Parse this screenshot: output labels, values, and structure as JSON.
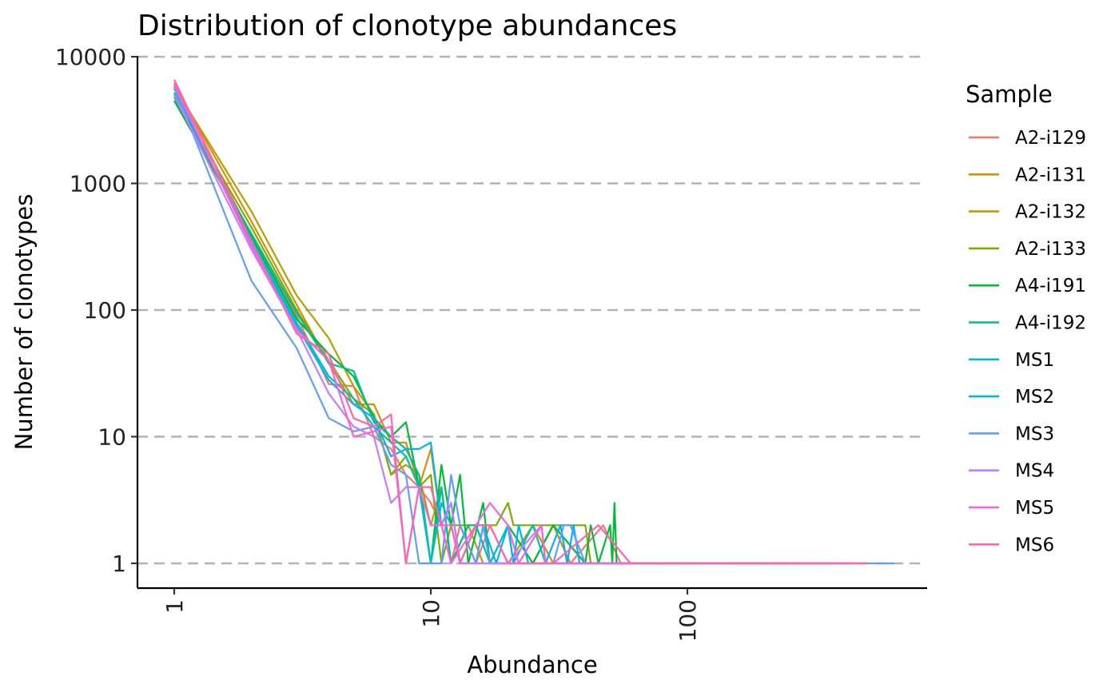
{
  "chart_data": {
    "type": "line",
    "title": "Distribution of clonotype abundances",
    "xlabel": "Abundance",
    "ylabel": "Number of clonotypes",
    "x_scale": "log10",
    "y_scale": "log10",
    "xlim": [
      0.87,
      825
    ],
    "ylim": [
      0.65,
      10000
    ],
    "x_ticks": [
      "1",
      "10",
      "100"
    ],
    "y_ticks": [
      "1",
      "10",
      "100",
      "1000",
      "10000"
    ],
    "grid": "horizontal major, dashed",
    "legend": {
      "title": "Sample",
      "position": "right"
    },
    "series": [
      {
        "name": "A2-i129",
        "color": "#F8766D",
        "points": [
          [
            1,
            6200
          ],
          [
            2,
            380
          ],
          [
            3,
            90
          ],
          [
            4,
            26
          ],
          [
            5,
            25
          ],
          [
            6,
            10
          ],
          [
            7,
            8
          ],
          [
            8,
            5
          ],
          [
            9,
            4
          ],
          [
            10,
            3
          ],
          [
            11,
            2
          ],
          [
            12,
            1
          ],
          [
            13,
            2
          ],
          [
            15,
            1
          ],
          [
            17,
            2
          ],
          [
            20,
            1
          ],
          [
            25,
            1
          ],
          [
            30,
            2
          ],
          [
            35,
            1
          ],
          [
            47,
            2
          ],
          [
            55,
            1
          ],
          [
            100,
            1
          ],
          [
            250,
            1
          ],
          [
            450,
            1
          ]
        ]
      },
      {
        "name": "A2-i131",
        "color": "#DE8C00",
        "points": [
          [
            1,
            6000
          ],
          [
            2,
            500
          ],
          [
            3,
            110
          ],
          [
            4,
            38
          ],
          [
            5,
            18
          ],
          [
            6,
            18
          ],
          [
            7,
            9
          ],
          [
            8,
            9
          ],
          [
            9,
            4
          ],
          [
            10,
            8
          ],
          [
            11,
            2
          ],
          [
            12,
            3
          ],
          [
            13,
            1
          ],
          [
            15,
            2
          ],
          [
            17,
            1
          ],
          [
            20,
            1
          ],
          [
            25,
            1
          ],
          [
            30,
            2
          ],
          [
            35,
            1
          ],
          [
            55,
            1
          ],
          [
            130,
            1
          ],
          [
            300,
            1
          ]
        ]
      },
      {
        "name": "A2-i132",
        "color": "#B79F00",
        "points": [
          [
            1,
            5800
          ],
          [
            2,
            600
          ],
          [
            3,
            130
          ],
          [
            4,
            60
          ],
          [
            5,
            25
          ],
          [
            6,
            15
          ],
          [
            7,
            5
          ],
          [
            8,
            6
          ],
          [
            9,
            5
          ],
          [
            10,
            2
          ],
          [
            11,
            4
          ],
          [
            12,
            1
          ],
          [
            14,
            2
          ],
          [
            16,
            1
          ],
          [
            20,
            1
          ],
          [
            25,
            2
          ],
          [
            30,
            1
          ],
          [
            55,
            1
          ],
          [
            150,
            1
          ],
          [
            350,
            1
          ]
        ]
      },
      {
        "name": "A2-i133",
        "color": "#7CAE00",
        "points": [
          [
            1,
            5000
          ],
          [
            2,
            450
          ],
          [
            3,
            100
          ],
          [
            4,
            40
          ],
          [
            5,
            20
          ],
          [
            6,
            15
          ],
          [
            7,
            5
          ],
          [
            8,
            7
          ],
          [
            9,
            4
          ],
          [
            10,
            5
          ],
          [
            11,
            1
          ],
          [
            12,
            2
          ],
          [
            15,
            2
          ],
          [
            18,
            2
          ],
          [
            20,
            3
          ],
          [
            21,
            2
          ],
          [
            30,
            2
          ],
          [
            40,
            2
          ],
          [
            42,
            1
          ],
          [
            50,
            1
          ],
          [
            120,
            1
          ],
          [
            280,
            1
          ]
        ]
      },
      {
        "name": "A4-i191",
        "color": "#00BA38",
        "points": [
          [
            1,
            4500
          ],
          [
            2,
            380
          ],
          [
            3,
            85
          ],
          [
            4,
            45
          ],
          [
            5,
            30
          ],
          [
            6,
            14
          ],
          [
            7,
            10
          ],
          [
            8,
            13
          ],
          [
            9,
            4
          ],
          [
            10,
            1
          ],
          [
            11,
            6
          ],
          [
            12,
            2
          ],
          [
            13,
            5
          ],
          [
            14,
            1
          ],
          [
            16,
            3
          ],
          [
            17,
            1
          ],
          [
            20,
            2
          ],
          [
            25,
            1
          ],
          [
            30,
            2
          ],
          [
            40,
            1
          ],
          [
            42,
            2
          ],
          [
            45,
            1
          ],
          [
            50,
            2
          ],
          [
            51,
            1
          ],
          [
            52,
            3
          ],
          [
            53,
            1
          ],
          [
            100,
            1
          ],
          [
            300,
            1
          ]
        ]
      },
      {
        "name": "A4-i192",
        "color": "#00C08B",
        "points": [
          [
            1,
            4800
          ],
          [
            2,
            400
          ],
          [
            3,
            95
          ],
          [
            4,
            38
          ],
          [
            5,
            33
          ],
          [
            6,
            13
          ],
          [
            7,
            10
          ],
          [
            8,
            8
          ],
          [
            9,
            5
          ],
          [
            10,
            1
          ],
          [
            11,
            4
          ],
          [
            12,
            1
          ],
          [
            14,
            2
          ],
          [
            16,
            2
          ],
          [
            17,
            1
          ],
          [
            20,
            1
          ],
          [
            30,
            1
          ],
          [
            40,
            1
          ],
          [
            55,
            1
          ],
          [
            200,
            1
          ],
          [
            500,
            1
          ]
        ]
      },
      {
        "name": "MS1",
        "color": "#00BFC4",
        "points": [
          [
            1,
            5200
          ],
          [
            2,
            360
          ],
          [
            3,
            80
          ],
          [
            4,
            30
          ],
          [
            5,
            20
          ],
          [
            6,
            12
          ],
          [
            7,
            9
          ],
          [
            8,
            7
          ],
          [
            9,
            4
          ],
          [
            10,
            1
          ],
          [
            11,
            3
          ],
          [
            12,
            2
          ],
          [
            13,
            1
          ],
          [
            15,
            2
          ],
          [
            17,
            1
          ],
          [
            20,
            2
          ],
          [
            21,
            1
          ],
          [
            25,
            2
          ],
          [
            28,
            1
          ],
          [
            35,
            1
          ],
          [
            100,
            1
          ],
          [
            400,
            1
          ]
        ]
      },
      {
        "name": "MS2",
        "color": "#00B4F0",
        "points": [
          [
            1,
            5600
          ],
          [
            2,
            340
          ],
          [
            3,
            75
          ],
          [
            4,
            28
          ],
          [
            5,
            18
          ],
          [
            6,
            14
          ],
          [
            7,
            7
          ],
          [
            8,
            8
          ],
          [
            9,
            8
          ],
          [
            10,
            9
          ],
          [
            11,
            2
          ],
          [
            12,
            3
          ],
          [
            13,
            1
          ],
          [
            15,
            1
          ],
          [
            16,
            2
          ],
          [
            18,
            1
          ],
          [
            20,
            2
          ],
          [
            21,
            1
          ],
          [
            22,
            2
          ],
          [
            24,
            1
          ],
          [
            28,
            1
          ],
          [
            32,
            2
          ],
          [
            34,
            1
          ],
          [
            36,
            2
          ],
          [
            38,
            1
          ],
          [
            60,
            1
          ],
          [
            200,
            1
          ]
        ]
      },
      {
        "name": "MS3",
        "color": "#619CFF",
        "points": [
          [
            1,
            5800
          ],
          [
            2,
            170
          ],
          [
            3,
            50
          ],
          [
            4,
            14
          ],
          [
            5,
            11
          ],
          [
            6,
            12
          ],
          [
            7,
            6
          ],
          [
            8,
            5
          ],
          [
            9,
            1
          ],
          [
            10,
            1
          ],
          [
            11,
            1
          ],
          [
            12,
            5
          ],
          [
            13,
            2
          ],
          [
            15,
            1
          ],
          [
            16,
            2
          ],
          [
            17,
            1
          ],
          [
            20,
            1
          ],
          [
            25,
            1
          ],
          [
            30,
            1
          ],
          [
            33,
            2
          ],
          [
            35,
            2
          ],
          [
            40,
            1
          ],
          [
            100,
            1
          ],
          [
            640,
            1
          ]
        ]
      },
      {
        "name": "MS4",
        "color": "#C77CFF",
        "points": [
          [
            1,
            5000
          ],
          [
            2,
            300
          ],
          [
            3,
            70
          ],
          [
            4,
            22
          ],
          [
            5,
            12
          ],
          [
            6,
            10
          ],
          [
            7,
            3
          ],
          [
            8,
            4
          ],
          [
            9,
            4
          ],
          [
            10,
            2
          ],
          [
            11,
            2
          ],
          [
            12,
            3
          ],
          [
            13,
            1
          ],
          [
            15,
            1
          ],
          [
            20,
            1
          ],
          [
            27,
            2
          ],
          [
            28,
            1
          ],
          [
            80,
            1
          ],
          [
            300,
            1
          ]
        ]
      },
      {
        "name": "MS5",
        "color": "#F564E3",
        "points": [
          [
            1,
            6000
          ],
          [
            2,
            320
          ],
          [
            3,
            70
          ],
          [
            4,
            40
          ],
          [
            5,
            10
          ],
          [
            6,
            11
          ],
          [
            7,
            12
          ],
          [
            8,
            1
          ],
          [
            9,
            4
          ],
          [
            10,
            2
          ],
          [
            11,
            2
          ],
          [
            12,
            1
          ],
          [
            15,
            2
          ],
          [
            17,
            3
          ],
          [
            20,
            2
          ],
          [
            22,
            1
          ],
          [
            27,
            2
          ],
          [
            28,
            1
          ],
          [
            100,
            1
          ],
          [
            400,
            1
          ]
        ]
      },
      {
        "name": "MS6",
        "color": "#FF64B0",
        "points": [
          [
            1,
            6600
          ],
          [
            2,
            350
          ],
          [
            3,
            65
          ],
          [
            4,
            45
          ],
          [
            5,
            14
          ],
          [
            6,
            12
          ],
          [
            7,
            15
          ],
          [
            8,
            1
          ],
          [
            9,
            4
          ],
          [
            10,
            4
          ],
          [
            11,
            2
          ],
          [
            12,
            2
          ],
          [
            13,
            1
          ],
          [
            15,
            2
          ],
          [
            17,
            2
          ],
          [
            20,
            1
          ],
          [
            30,
            1
          ],
          [
            45,
            2
          ],
          [
            60,
            1
          ],
          [
            150,
            1
          ],
          [
            500,
            1
          ]
        ]
      }
    ]
  }
}
